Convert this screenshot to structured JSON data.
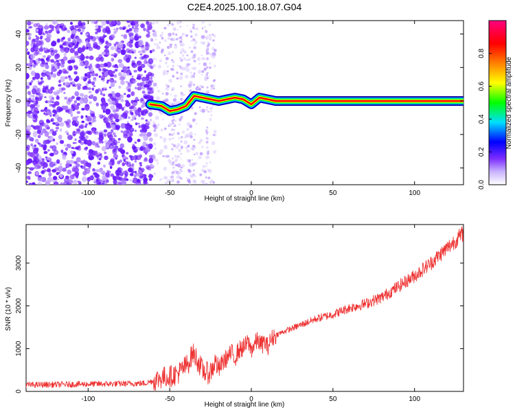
{
  "chart_data": [
    {
      "type": "heatmap",
      "title": "C2E4.2025.100.18.07.G04",
      "xlabel": "Height of straight line (km)",
      "ylabel": "Frequency (Hz)",
      "xlim": [
        -138,
        130
      ],
      "ylim": [
        -50,
        48
      ],
      "x_ticks": [
        -100,
        -50,
        0,
        50,
        100
      ],
      "y_ticks": [
        -40,
        -20,
        0,
        20,
        40
      ],
      "colorbar": {
        "label": "Normalized spectral amplitude",
        "range": [
          0,
          1
        ],
        "ticks": [
          "0.0",
          "0.2",
          "0.4",
          "0.6",
          "0.8"
        ],
        "tick_values": [
          0,
          0.2,
          0.4,
          0.6,
          0.8
        ],
        "colors": [
          "#ffffff",
          "#7b2cff",
          "#0000ff",
          "#00e0ff",
          "#00ff00",
          "#ffff00",
          "#ff8000",
          "#ff0000",
          "#ff0080"
        ]
      },
      "tone_line": {
        "x": [
          -62,
          -55,
          -50,
          -45,
          -40,
          -35,
          -30,
          -25,
          -20,
          -15,
          -10,
          -5,
          0,
          5,
          10,
          15,
          130
        ],
        "y": [
          -2,
          -3,
          -6,
          -5,
          -3,
          3,
          2,
          1,
          0,
          1,
          2,
          1,
          -2,
          2,
          1,
          0,
          0
        ]
      },
      "grid": false
    },
    {
      "type": "line",
      "xlabel": "Height of straight line (km)",
      "ylabel": "SNR (10 * v/v)",
      "xlim": [
        -138,
        130
      ],
      "ylim": [
        0,
        3900
      ],
      "x_ticks": [
        -100,
        -50,
        0,
        50,
        100
      ],
      "y_ticks": [
        0,
        1000,
        2000,
        3000
      ],
      "line_color": "#ee3333",
      "x": [
        -138,
        -120,
        -100,
        -80,
        -65,
        -60,
        -55,
        -50,
        -45,
        -40,
        -38,
        -36,
        -34,
        -32,
        -30,
        -28,
        -26,
        -24,
        -22,
        -20,
        -18,
        -16,
        -14,
        -12,
        -10,
        -8,
        -6,
        -4,
        -2,
        0,
        2,
        4,
        6,
        8,
        10,
        12,
        14,
        20,
        30,
        40,
        50,
        60,
        70,
        80,
        90,
        100,
        110,
        120,
        130
      ],
      "y": [
        150,
        160,
        170,
        180,
        190,
        250,
        320,
        350,
        420,
        600,
        700,
        900,
        800,
        650,
        500,
        450,
        420,
        520,
        700,
        500,
        650,
        750,
        820,
        900,
        780,
        950,
        1000,
        1050,
        1150,
        980,
        1100,
        1200,
        1080,
        1150,
        1050,
        1200,
        1300,
        1400,
        1550,
        1700,
        1800,
        1950,
        2050,
        2200,
        2450,
        2700,
        3000,
        3350,
        3700
      ]
    }
  ]
}
